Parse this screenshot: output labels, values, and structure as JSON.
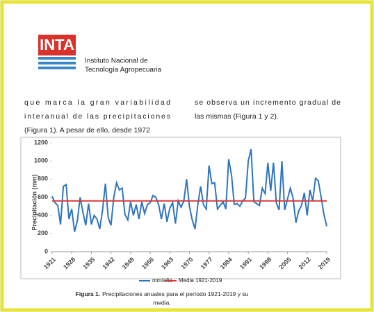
{
  "header": {
    "logo": "INTA",
    "institution": [
      "Instituto Nacional de",
      "Tecnología Agropecuaria"
    ]
  },
  "columns": [
    [
      "que marca la gran variabilidad",
      "interanual de las precipitaciones",
      "(Figura 1). A pesar de ello, desde 1972"
    ],
    [
      "se observa un incremento gradual de",
      "las mismas (Figura 1 y 2)."
    ]
  ],
  "chart_data": {
    "type": "line",
    "ylabel": "Precipitación (mm)",
    "x": [
      1921,
      1922,
      1923,
      1924,
      1925,
      1926,
      1927,
      1928,
      1929,
      1930,
      1931,
      1932,
      1933,
      1934,
      1935,
      1936,
      1937,
      1938,
      1939,
      1940,
      1941,
      1942,
      1943,
      1944,
      1945,
      1946,
      1947,
      1948,
      1949,
      1950,
      1951,
      1952,
      1953,
      1954,
      1955,
      1956,
      1957,
      1958,
      1959,
      1960,
      1961,
      1962,
      1963,
      1964,
      1965,
      1966,
      1967,
      1968,
      1969,
      1970,
      1971,
      1972,
      1973,
      1974,
      1975,
      1976,
      1977,
      1978,
      1979,
      1980,
      1981,
      1982,
      1983,
      1984,
      1985,
      1986,
      1987,
      1988,
      1989,
      1990,
      1991,
      1992,
      1993,
      1994,
      1995,
      1996,
      1997,
      1998,
      1999,
      2000,
      2001,
      2002,
      2003,
      2004,
      2005,
      2006,
      2007,
      2008,
      2009,
      2010,
      2011,
      2012,
      2013,
      2014,
      2015,
      2016,
      2017,
      2018,
      2019
    ],
    "series": [
      {
        "name": "mm/año",
        "color": "#2e75c0",
        "values": [
          610,
          540,
          510,
          300,
          720,
          740,
          360,
          470,
          220,
          340,
          600,
          430,
          290,
          530,
          300,
          400,
          360,
          250,
          460,
          750,
          380,
          290,
          600,
          760,
          680,
          700,
          410,
          350,
          550,
          400,
          520,
          360,
          550,
          420,
          520,
          540,
          620,
          600,
          520,
          360,
          530,
          330,
          480,
          540,
          310,
          560,
          490,
          560,
          800,
          500,
          350,
          250,
          520,
          720,
          520,
          470,
          950,
          750,
          760,
          470,
          510,
          550,
          470,
          1020,
          850,
          520,
          530,
          500,
          560,
          590,
          1000,
          1130,
          550,
          530,
          510,
          700,
          640,
          980,
          670,
          980,
          540,
          460,
          1000,
          460,
          580,
          700,
          590,
          320,
          450,
          510,
          650,
          400,
          680,
          560,
          810,
          780,
          600,
          410,
          280
        ]
      }
    ],
    "mean_line": {
      "name": "Media 1921-2019",
      "color": "#d93a3a",
      "value": 560
    },
    "xlim": [
      1921,
      2019
    ],
    "xticks": [
      1921,
      1928,
      1935,
      1942,
      1949,
      1956,
      1963,
      1970,
      1977,
      1984,
      1991,
      1998,
      2005,
      2012,
      2019
    ],
    "ylim": [
      0,
      1200
    ],
    "yticks": [
      0,
      200,
      400,
      600,
      800,
      1000,
      1200
    ],
    "grid": false
  },
  "caption": {
    "label": "Figura 1.",
    "lines": [
      "Precipitaciones anuales para el período 1921-2019 y su",
      "media."
    ]
  }
}
